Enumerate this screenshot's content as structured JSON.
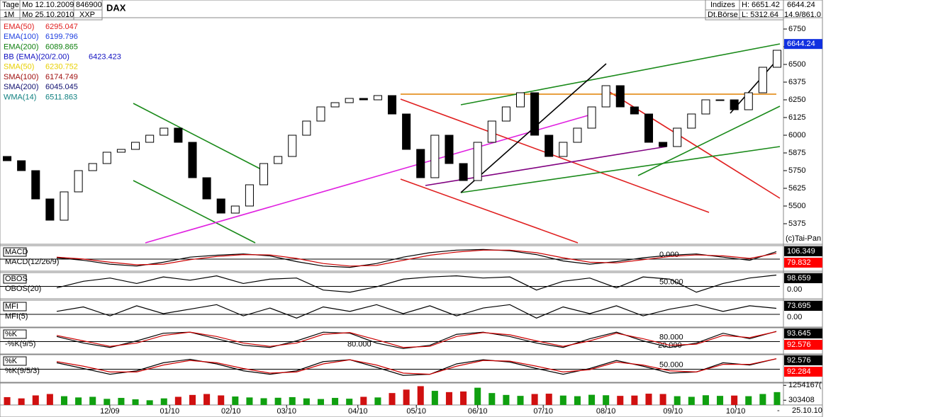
{
  "header": {
    "tage": "Tage",
    "from": "Mo 12.10.2009",
    "code": "846900",
    "period": "1M",
    "to": "Mo 25.10.2010",
    "exchange_code": "XXP",
    "name": "DAX",
    "group": "Indizes",
    "exchange": "Dt.Börse",
    "high": "H: 6651.42",
    "low": "L: 5312.64",
    "last": "6644.24",
    "volume": "14.9/861.0",
    "copyright": "(c)Tai-Pan",
    "end_date": "25.10.10",
    "end_mark": "-"
  },
  "chart_data": [
    {
      "type": "candlestick",
      "legend": [
        {
          "name": "EMA(50)",
          "value": "6295.047",
          "color": "#e02020"
        },
        {
          "name": "EMA(100)",
          "value": "6199.796",
          "color": "#2040e0"
        },
        {
          "name": "EMA(200)",
          "value": "6089.865",
          "color": "#108010"
        },
        {
          "name": "BB (EMA)(20/2.00)",
          "value": "6423.423",
          "color": "#1010c0"
        },
        {
          "name": "SMA(50)",
          "value": "6230.752",
          "color": "#e8d000"
        },
        {
          "name": "SMA(100)",
          "value": "6174.749",
          "color": "#a01010"
        },
        {
          "name": "SMA(200)",
          "value": "6045.045",
          "color": "#101070"
        },
        {
          "name": "WMA(14)",
          "value": "6511.863",
          "color": "#108080"
        }
      ],
      "open": [
        5850,
        5820,
        5750,
        5550,
        5400,
        5600,
        5750,
        5800,
        5880,
        5900,
        5950,
        6000,
        6050,
        5950,
        5700,
        5550,
        5450,
        5500,
        5650,
        5800,
        5850,
        6000,
        6100,
        6200,
        6230,
        6260,
        6250,
        6280,
        6150,
        5900,
        5700,
        6000,
        5800,
        5680,
        5950,
        6100,
        6200,
        6300,
        6000,
        5850,
        5950,
        6050,
        6200,
        6350,
        6200,
        6150,
        5950,
        5920,
        6050,
        6150,
        6250,
        6250,
        6180,
        6300,
        6480
      ],
      "close": [
        5820,
        5750,
        5550,
        5400,
        5600,
        5750,
        5800,
        5880,
        5900,
        5950,
        6000,
        6050,
        5950,
        5700,
        5550,
        5450,
        5500,
        5650,
        5800,
        5850,
        6000,
        6100,
        6200,
        6230,
        6260,
        6250,
        6280,
        6150,
        5900,
        5700,
        6000,
        5800,
        5680,
        5950,
        6100,
        6200,
        6300,
        6000,
        5850,
        5950,
        6050,
        6200,
        6350,
        6200,
        6150,
        5950,
        5920,
        6050,
        6150,
        6250,
        6250,
        6180,
        6300,
        6480,
        6600
      ],
      "last_price": 6644.24,
      "ylim": [
        5230,
        6830
      ],
      "yticks": [
        6750,
        6625,
        6500,
        6375,
        6250,
        6125,
        6000,
        5875,
        5750,
        5625,
        5500,
        5375
      ],
      "xlim": [
        -0.5,
        54.2
      ],
      "xticks": [
        {
          "value": 7.2,
          "label": "12/09"
        },
        {
          "value": 11.4,
          "label": "01/10"
        },
        {
          "value": 15.7,
          "label": "02/10"
        },
        {
          "value": 19.6,
          "label": "03/10"
        },
        {
          "value": 24.6,
          "label": "04/10"
        },
        {
          "value": 28.7,
          "label": "05/10"
        },
        {
          "value": 33.0,
          "label": "06/10"
        },
        {
          "value": 37.6,
          "label": "07/10"
        },
        {
          "value": 42.0,
          "label": "08/10"
        },
        {
          "value": 46.7,
          "label": "09/10"
        },
        {
          "value": 51.1,
          "label": "10/10"
        }
      ]
    },
    {
      "type": "line",
      "label": "MACD",
      "sublabel": "MACD(12/26/9)",
      "level_label": "0.000",
      "ylim": [
        -200,
        200
      ],
      "series": [
        {
          "color": "#000000",
          "values": [
            10,
            -30,
            -90,
            -120,
            -60,
            20,
            50,
            70,
            40,
            -50,
            -120,
            -140,
            -80,
            20,
            90,
            130,
            140,
            120,
            60,
            -40,
            -90,
            -50,
            10,
            50,
            70,
            20,
            -30,
            106
          ]
        },
        {
          "color": "#cc0000",
          "values": [
            20,
            -10,
            -60,
            -100,
            -90,
            -20,
            30,
            60,
            55,
            0,
            -80,
            -120,
            -110,
            -30,
            50,
            100,
            130,
            130,
            90,
            10,
            -60,
            -70,
            -20,
            30,
            55,
            40,
            0,
            80
          ]
        }
      ],
      "readouts": [
        {
          "text": "106.349",
          "bg": "#000000"
        },
        {
          "text": "79.832",
          "bg": "#ff0000"
        }
      ]
    },
    {
      "type": "line",
      "label": "OBOS",
      "sublabel": "OBOS(20)",
      "level_label": "50.000",
      "ylim": [
        -10,
        110
      ],
      "series": [
        {
          "color": "#000000",
          "values": [
            40,
            70,
            85,
            60,
            90,
            75,
            95,
            60,
            80,
            85,
            30,
            20,
            45,
            80,
            90,
            95,
            85,
            90,
            30,
            70,
            85,
            40,
            90,
            80,
            20,
            60,
            85,
            98.659
          ]
        }
      ],
      "readouts": [
        {
          "text": "98.659",
          "bg": "#000000"
        },
        {
          "text": "0.00",
          "bg": "none"
        }
      ]
    },
    {
      "type": "line",
      "label": "MFI",
      "sublabel": "MFI(5)",
      "ylim": [
        -10,
        110
      ],
      "series": [
        {
          "color": "#000000",
          "values": [
            60,
            80,
            40,
            85,
            50,
            70,
            90,
            40,
            75,
            30,
            80,
            60,
            90,
            50,
            85,
            40,
            75,
            90,
            30,
            80,
            50,
            85,
            40,
            70,
            90,
            60,
            85,
            73.695
          ]
        }
      ],
      "readouts": [
        {
          "text": "73.695",
          "bg": "#000000"
        },
        {
          "text": "0.00",
          "bg": "none"
        }
      ]
    },
    {
      "type": "line",
      "label": "%K",
      "sublabel": "-%K(9/5)",
      "level_label": "80.000",
      "level_label2": "80.000",
      "level_label3": "20.000",
      "ylim": [
        -10,
        110
      ],
      "series": [
        {
          "color": "#000000",
          "values": [
            70,
            40,
            20,
            50,
            85,
            90,
            60,
            30,
            20,
            50,
            90,
            85,
            40,
            15,
            30,
            80,
            90,
            70,
            40,
            20,
            60,
            90,
            50,
            20,
            40,
            85,
            60,
            93.645
          ]
        },
        {
          "color": "#cc0000",
          "values": [
            75,
            50,
            25,
            40,
            75,
            90,
            70,
            40,
            25,
            40,
            80,
            88,
            55,
            20,
            25,
            70,
            88,
            78,
            50,
            25,
            50,
            85,
            60,
            30,
            35,
            75,
            65,
            92.576
          ]
        }
      ],
      "readouts": [
        {
          "text": "93.645",
          "bg": "#000000"
        },
        {
          "text": "92.576",
          "bg": "#ff0000"
        }
      ]
    },
    {
      "type": "line",
      "label": "%K",
      "sublabel": "%K(9/5/3)",
      "level_label": "50.000",
      "ylim": [
        -10,
        110
      ],
      "series": [
        {
          "color": "#000000",
          "values": [
            75,
            50,
            25,
            40,
            75,
            90,
            70,
            40,
            25,
            40,
            80,
            88,
            55,
            20,
            25,
            70,
            88,
            78,
            50,
            25,
            50,
            85,
            60,
            30,
            35,
            75,
            65,
            92.576
          ]
        },
        {
          "color": "#cc0000",
          "values": [
            80,
            60,
            35,
            35,
            65,
            85,
            75,
            50,
            30,
            35,
            70,
            88,
            65,
            30,
            25,
            60,
            85,
            82,
            60,
            35,
            45,
            78,
            65,
            40,
            35,
            68,
            68,
            92.284
          ]
        }
      ],
      "readouts": [
        {
          "text": "92.576",
          "bg": "#000000"
        },
        {
          "text": "92.284",
          "bg": "#ff0000"
        }
      ]
    },
    {
      "type": "bar",
      "ylim": [
        0,
        1400000
      ],
      "yticks": [
        {
          "value": 1254167,
          "label": "1254167("
        },
        303408
      ],
      "values": [
        500000,
        420000,
        610000,
        700000,
        560000,
        480000,
        520000,
        390000,
        450000,
        360000,
        300000,
        420000,
        520000,
        640000,
        700000,
        610000,
        540000,
        480000,
        430000,
        460000,
        500000,
        420000,
        380000,
        450000,
        400000,
        520000,
        480000,
        760000,
        980000,
        1200000,
        900000,
        820000,
        860000,
        1100000,
        760000,
        640000,
        580000,
        700000,
        720000,
        600000,
        560000,
        650000,
        620000,
        580000,
        600000,
        720000,
        700000,
        560000,
        520000,
        620000,
        580000,
        600000,
        560000,
        700000,
        820000
      ]
    }
  ]
}
